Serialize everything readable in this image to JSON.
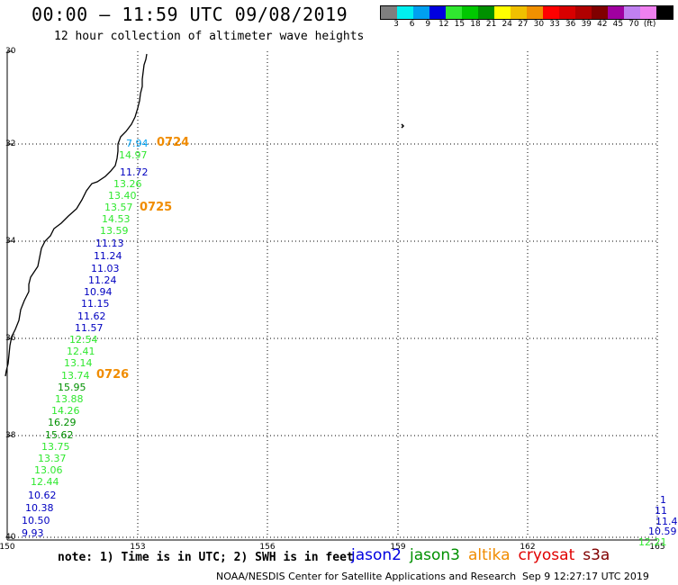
{
  "header": {
    "title": "00:00 – 11:59 UTC 09/08/2019",
    "subtitle": "12 hour collection of altimeter wave heights"
  },
  "color_scale": {
    "colors": [
      "#7f7f7f",
      "#00f0f0",
      "#00a0f0",
      "#0000e0",
      "#30e830",
      "#00c800",
      "#009000",
      "#ffff00",
      "#f0c000",
      "#f09000",
      "#ff0000",
      "#d80000",
      "#b00000",
      "#800000",
      "#a000a0",
      "#c080f0",
      "#f080f0",
      "#000000"
    ],
    "labels": [
      "3",
      "6",
      "9",
      "12",
      "15",
      "18",
      "21",
      "24",
      "27",
      "30",
      "33",
      "36",
      "39",
      "42",
      "45",
      "70",
      "(ft)"
    ]
  },
  "map": {
    "lat_labels": [
      "30",
      "32",
      "34",
      "36",
      "38",
      "40"
    ],
    "lon_labels": [
      "150",
      "153",
      "156",
      "159",
      "162",
      "165"
    ],
    "observations": [
      {
        "value": "7.94",
        "color": "#00a0f0"
      },
      {
        "value": "14.97",
        "color": "#30e830"
      },
      {
        "value": "11.72",
        "color": "#0000c0"
      },
      {
        "value": "13.26",
        "color": "#30e830"
      },
      {
        "value": "13.40",
        "color": "#30e830"
      },
      {
        "value": "13.57",
        "color": "#30e830"
      },
      {
        "value": "14.53",
        "color": "#30e830"
      },
      {
        "value": "13.59",
        "color": "#30e830"
      },
      {
        "value": "11.13",
        "color": "#0000c0"
      },
      {
        "value": "11.24",
        "color": "#0000c0"
      },
      {
        "value": "11.03",
        "color": "#0000c0"
      },
      {
        "value": "11.24",
        "color": "#0000c0"
      },
      {
        "value": "10.94",
        "color": "#0000c0"
      },
      {
        "value": "11.15",
        "color": "#0000c0"
      },
      {
        "value": "11.62",
        "color": "#0000c0"
      },
      {
        "value": "11.57",
        "color": "#0000c0"
      },
      {
        "value": "12.54",
        "color": "#30e830"
      },
      {
        "value": "12.41",
        "color": "#30e830"
      },
      {
        "value": "13.14",
        "color": "#30e830"
      },
      {
        "value": "13.74",
        "color": "#30e830"
      },
      {
        "value": "15.95",
        "color": "#009000"
      },
      {
        "value": "13.88",
        "color": "#30e830"
      },
      {
        "value": "14.26",
        "color": "#30e830"
      },
      {
        "value": "16.29",
        "color": "#009000"
      },
      {
        "value": "15.62",
        "color": "#009000"
      },
      {
        "value": "13.75",
        "color": "#30e830"
      },
      {
        "value": "13.37",
        "color": "#30e830"
      },
      {
        "value": "13.06",
        "color": "#30e830"
      },
      {
        "value": "12.44",
        "color": "#30e830"
      },
      {
        "value": "10.62",
        "color": "#0000c0"
      },
      {
        "value": "10.38",
        "color": "#0000c0"
      },
      {
        "value": "10.50",
        "color": "#0000c0"
      },
      {
        "value": "9.93",
        "color": "#0000c0"
      },
      {
        "value": "1",
        "color": "#0000c0"
      },
      {
        "value": "11",
        "color": "#0000c0"
      },
      {
        "value": "11.4",
        "color": "#0000c0"
      },
      {
        "value": "10.59",
        "color": "#0000c0"
      },
      {
        "value": "12.21",
        "color": "#30e830"
      }
    ],
    "times": [
      "0724",
      "0725",
      "0726"
    ]
  },
  "footer": {
    "note": "note: 1) Time is in UTC; 2) SWH is in feet",
    "satellites": [
      {
        "name": "jason2",
        "color": "#0000e0"
      },
      {
        "name": "jason3",
        "color": "#009000"
      },
      {
        "name": "altika",
        "color": "#f08c00"
      },
      {
        "name": "cryosat",
        "color": "#e00000"
      },
      {
        "name": "s3a",
        "color": "#800000"
      }
    ],
    "credit": "NOAA/NESDIS Center for Satellite Applications and Research",
    "timestamp": "Sep  9 12:27:17 UTC 2019"
  }
}
